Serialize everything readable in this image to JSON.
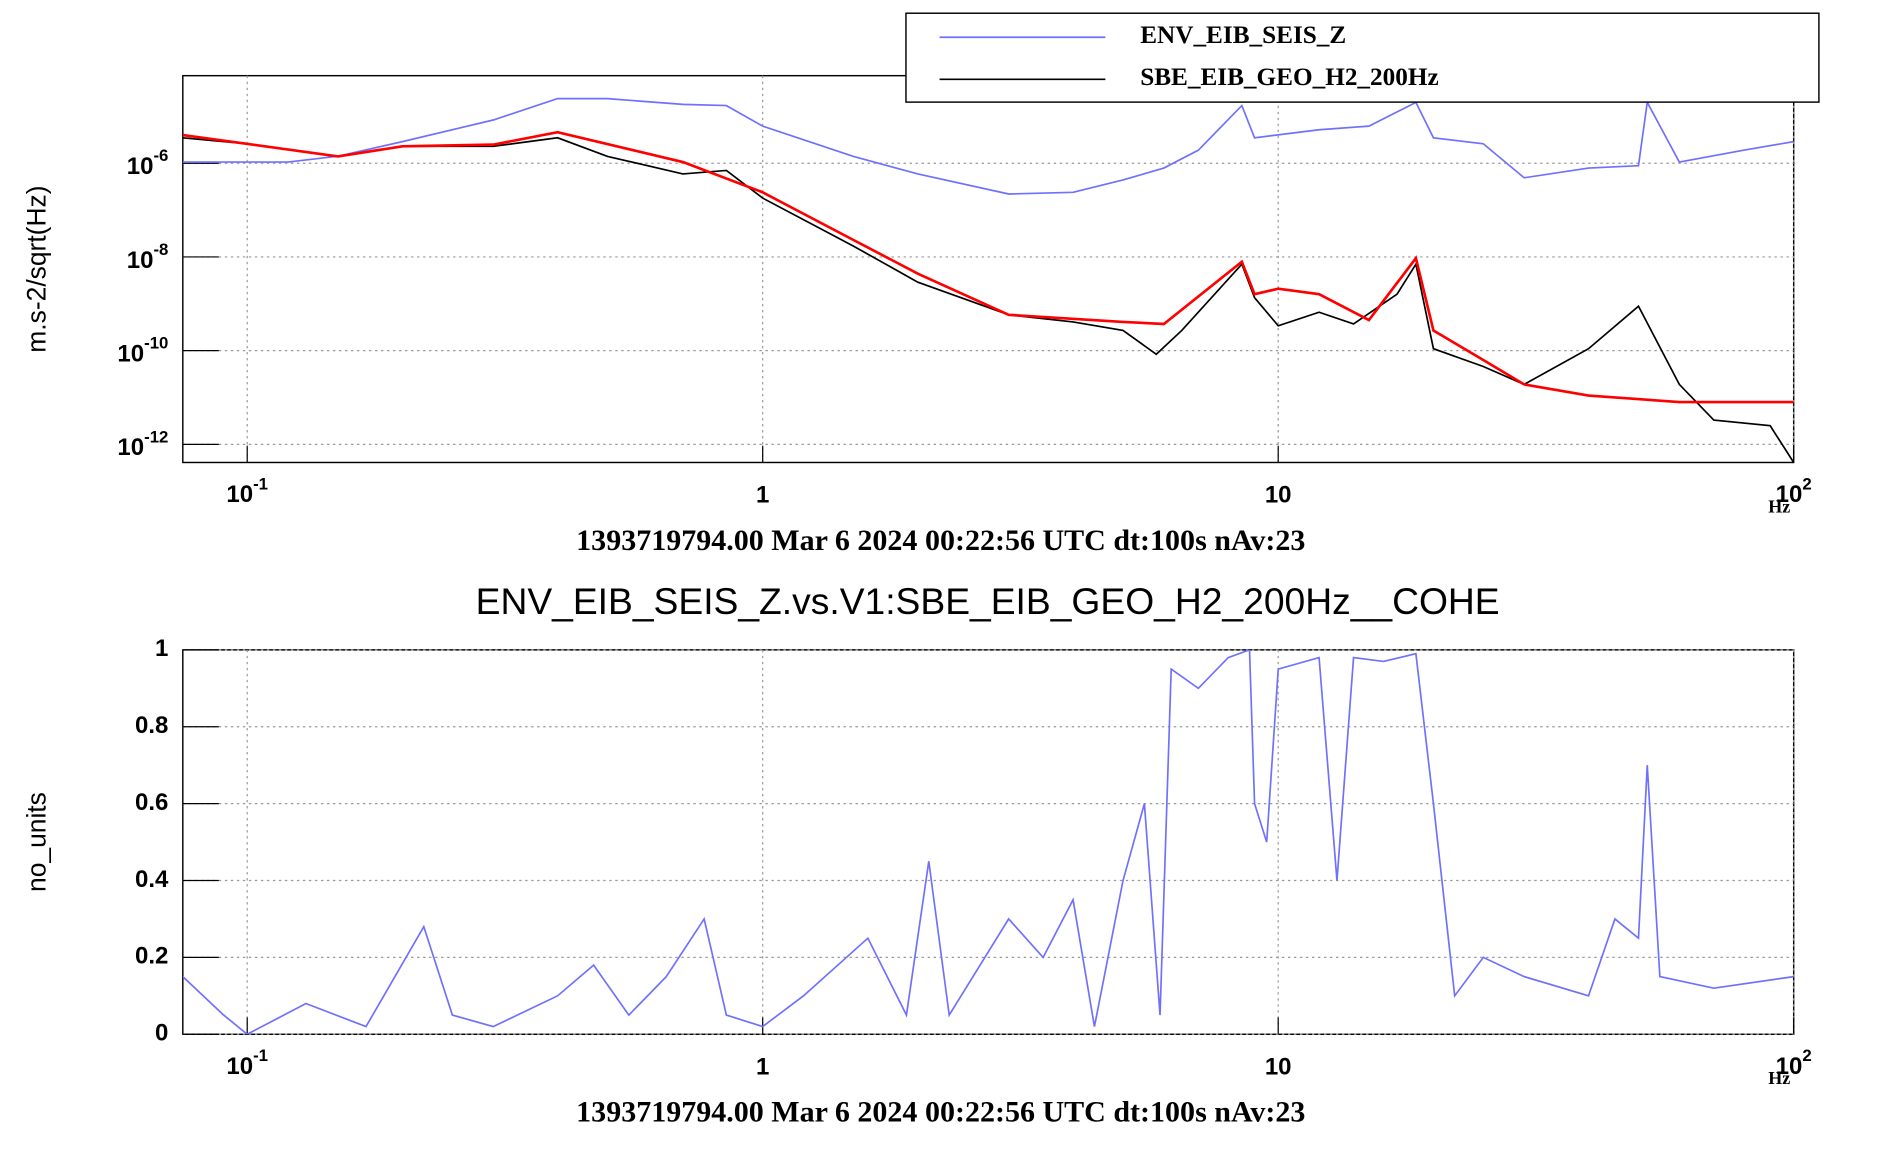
{
  "chart_data": [
    {
      "type": "line",
      "log_x": true,
      "log_y": true,
      "grid": true,
      "legend": "top-right",
      "ylabel": "m.s-2/sqrt(Hz)",
      "xlabel": "Hz",
      "footer": "1393719794.00 Mar 6 2024 00:22:56 UTC dt:100s nAv:23",
      "xlim": [
        0.075,
        100
      ],
      "ylim": [
        4.1e-13,
        7.4e-05
      ],
      "xticks": [
        {
          "value": 0.1,
          "label": "10",
          "exponent": "-1"
        },
        1,
        10,
        {
          "value": 100,
          "label": "10",
          "exponent": "2"
        }
      ],
      "yticks": [
        {
          "value": 1e-06,
          "label": "10",
          "exponent": "-6"
        },
        {
          "value": 1e-08,
          "label": "10",
          "exponent": "-8"
        },
        {
          "value": 1e-10,
          "label": "10",
          "exponent": "-10"
        },
        {
          "value": 1e-12,
          "label": "10",
          "exponent": "-12"
        }
      ],
      "series": [
        {
          "name": "ENV_EIB_SEIS_Z",
          "color": "#7070ff",
          "x": [
            0.075,
            0.12,
            0.15,
            0.2,
            0.3,
            0.4,
            0.5,
            0.7,
            0.85,
            1,
            1.5,
            2,
            3,
            4,
            5,
            6,
            7,
            8.5,
            9,
            12,
            15,
            18.5,
            20,
            25,
            30,
            40,
            50,
            52,
            60,
            80,
            100
          ],
          "values": [
            1.06e-06,
            1.06e-06,
            1.42e-06,
            2.9e-06,
            8.4e-06,
            2.4e-05,
            2.4e-05,
            1.8e-05,
            1.7e-05,
            6.2e-06,
            1.4e-06,
            5.9e-07,
            2.2e-07,
            2.4e-07,
            4.4e-07,
            7.9e-07,
            1.9e-06,
            1.7e-05,
            3.5e-06,
            5.2e-06,
            6.2e-06,
            2e-05,
            3.5e-06,
            2.6e-06,
            4.9e-07,
            7.9e-07,
            8.9e-07,
            2e-05,
            1.06e-06,
            1.9e-06,
            2.9e-06
          ]
        },
        {
          "name": "SBE_EIB_GEO_H2_200Hz",
          "color": "#000000",
          "x": [
            0.075,
            0.1,
            0.15,
            0.2,
            0.3,
            0.4,
            0.5,
            0.7,
            0.85,
            1,
            1.5,
            2,
            3,
            4,
            5,
            5.8,
            6.5,
            8.5,
            9,
            10,
            12,
            14,
            17,
            18.5,
            20,
            25,
            30,
            40,
            50,
            60,
            70,
            90,
            100
          ],
          "values": [
            3.5e-06,
            2.6e-06,
            1.4e-06,
            2.3e-06,
            2.3e-06,
            3.5e-06,
            1.4e-06,
            5.9e-07,
            7e-07,
            1.8e-07,
            1.7e-08,
            2.9e-09,
            5.8e-10,
            4.1e-10,
            2.7e-10,
            8.4e-11,
            2.7e-10,
            7e-09,
            1.35e-09,
            3.4e-10,
            6.6e-10,
            3.7e-10,
            1.6e-09,
            7e-09,
            1.1e-10,
            4.6e-11,
            1.9e-11,
            1.1e-10,
            8.9e-10,
            1.9e-11,
            3.3e-12,
            2.5e-12,
            4.1e-13
          ]
        },
        {
          "color": "#ff0000",
          "x": [
            0.075,
            0.15,
            0.2,
            0.3,
            0.4,
            0.7,
            1,
            1.5,
            2,
            3,
            5,
            6,
            8.5,
            9,
            10,
            12,
            15,
            18.5,
            20,
            25,
            30,
            40,
            60,
            100
          ],
          "values": [
            4e-06,
            1.4e-06,
            2.3e-06,
            2.5e-06,
            4.6e-06,
            1.06e-06,
            2.4e-07,
            2.3e-08,
            4.4e-09,
            5.8e-10,
            4.1e-10,
            3.7e-10,
            7.9e-09,
            1.6e-09,
            2.1e-09,
            1.6e-09,
            4.5e-10,
            9.4e-09,
            2.7e-10,
            6.3e-11,
            1.9e-11,
            1.1e-11,
            8e-12,
            8e-12
          ]
        }
      ]
    },
    {
      "type": "line",
      "log_x": true,
      "log_y": false,
      "grid": true,
      "title": "ENV_EIB_SEIS_Z.vs.V1:SBE_EIB_GEO_H2_200Hz__COHE",
      "ylabel": "no_units",
      "xlabel": "Hz",
      "footer": "1393719794.00 Mar 6 2024 00:22:56 UTC dt:100s nAv:23",
      "xlim": [
        0.075,
        100
      ],
      "ylim": [
        0,
        1
      ],
      "xticks": [
        {
          "value": 0.1,
          "label": "10",
          "exponent": "-1"
        },
        1,
        10,
        {
          "value": 100,
          "label": "10",
          "exponent": "2"
        }
      ],
      "yticks": [
        0,
        0.2,
        0.4,
        0.6,
        0.8,
        1
      ],
      "series": [
        {
          "color": "#7070ff",
          "x": [
            0.075,
            0.09,
            0.1,
            0.13,
            0.17,
            0.22,
            0.25,
            0.3,
            0.4,
            0.47,
            0.55,
            0.65,
            0.77,
            0.85,
            1,
            1.2,
            1.6,
            1.9,
            2.1,
            2.3,
            3,
            3.5,
            4,
            4.4,
            5,
            5.5,
            5.9,
            6.2,
            7,
            8,
            8.8,
            9,
            9.5,
            10,
            12,
            13,
            14,
            16,
            18.5,
            20,
            22,
            25,
            30,
            40,
            45,
            50,
            52,
            55,
            70,
            100
          ],
          "values": [
            0.15,
            0.05,
            0,
            0.08,
            0.02,
            0.28,
            0.05,
            0.02,
            0.1,
            0.18,
            0.05,
            0.15,
            0.3,
            0.05,
            0.02,
            0.1,
            0.25,
            0.05,
            0.45,
            0.05,
            0.3,
            0.2,
            0.35,
            0.02,
            0.4,
            0.6,
            0.05,
            0.95,
            0.9,
            0.98,
            1,
            0.6,
            0.5,
            0.95,
            0.98,
            0.4,
            0.98,
            0.97,
            0.99,
            0.6,
            0.1,
            0.2,
            0.15,
            0.1,
            0.3,
            0.25,
            0.7,
            0.15,
            0.12,
            0.15
          ]
        }
      ]
    }
  ]
}
